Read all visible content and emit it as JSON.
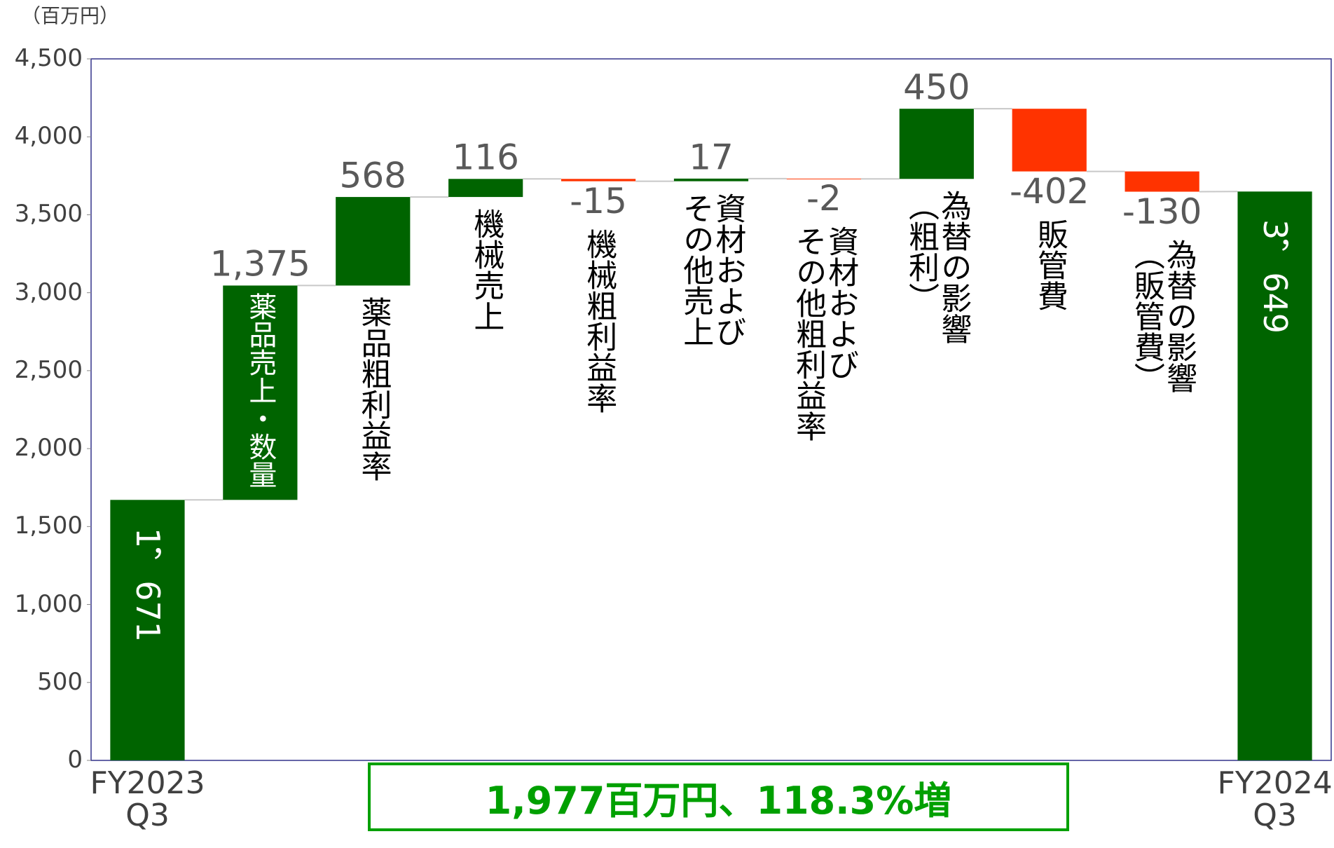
{
  "chart_data": {
    "type": "waterfall",
    "unit_label": "（百万円）",
    "categories": [
      "FY2023\nQ3",
      "薬品売上・数量",
      "薬品粗利益率",
      "機械売上",
      "機械粗利益率",
      "資材および\nその他売上",
      "資材および\nその他粗利益率",
      "為替の影響\n（粗利）",
      "販管費",
      "為替の影響\n（販管費）",
      "FY2024\nQ3"
    ],
    "values": [
      1671,
      1375,
      568,
      116,
      -15,
      17,
      -2,
      450,
      -402,
      -130,
      3649
    ],
    "value_labels": [
      "1，671",
      "1,375",
      "568",
      "116",
      "-15",
      "17",
      "-2",
      "450",
      "-402",
      "-130",
      "3，649"
    ],
    "measures": [
      "total",
      "relative",
      "relative",
      "relative",
      "relative",
      "relative",
      "relative",
      "relative",
      "relative",
      "relative",
      "total"
    ],
    "colors": {
      "increase": "#006400",
      "decrease": "#ff3300",
      "total": "#006400"
    },
    "ylim": [
      0,
      4500
    ],
    "yticks": [
      0,
      500,
      {
        "value": 1000,
        "label": "1,000"
      },
      {
        "value": 1500,
        "label": "1,500"
      },
      {
        "value": 2000,
        "label": "2,000"
      },
      {
        "value": 2500,
        "label": "2,500"
      },
      {
        "value": 3000,
        "label": "3,000"
      },
      {
        "value": 3500,
        "label": "3,500"
      },
      {
        "value": 4000,
        "label": "4,000"
      },
      {
        "value": 4500,
        "label": "4,500"
      }
    ],
    "annotation": "1,977百万円、118.3%増"
  }
}
